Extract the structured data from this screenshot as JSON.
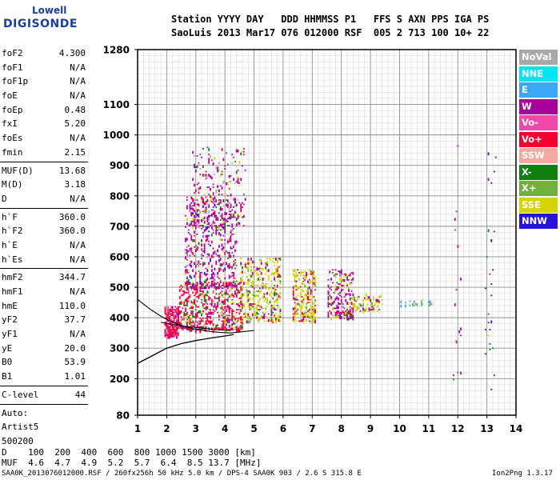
{
  "logo": {
    "top": "Lowell",
    "bottom": "DIGISONDE"
  },
  "header": {
    "line1": "Station YYYY DAY   DDD HHMMSS P1   FFS S AXN PPS IGA PS",
    "line2": "SaoLuis 2013 Mar17 076 012000 RSF  005 2 713 100 10+ 22"
  },
  "params": {
    "group1": [
      {
        "k": "foF2",
        "v": "4.300"
      },
      {
        "k": "foF1",
        "v": "N/A"
      },
      {
        "k": "foF1p",
        "v": "N/A"
      },
      {
        "k": "foE",
        "v": "N/A"
      },
      {
        "k": "foEp",
        "v": "0.48"
      },
      {
        "k": "fxI",
        "v": "5.20"
      },
      {
        "k": "foEs",
        "v": "N/A"
      },
      {
        "k": "fmin",
        "v": "2.15"
      }
    ],
    "group2": [
      {
        "k": "MUF(D)",
        "v": "13.68"
      },
      {
        "k": "M(D)",
        "v": "3.18"
      },
      {
        "k": "D",
        "v": "N/A"
      }
    ],
    "group3": [
      {
        "k": "h`F",
        "v": "360.0"
      },
      {
        "k": "h`F2",
        "v": "360.0"
      },
      {
        "k": "h`E",
        "v": "N/A"
      },
      {
        "k": "h`Es",
        "v": "N/A"
      }
    ],
    "group4": [
      {
        "k": "hmF2",
        "v": "344.7"
      },
      {
        "k": "hmF1",
        "v": "N/A"
      },
      {
        "k": "hmE",
        "v": "110.0"
      },
      {
        "k": "yF2",
        "v": "37.7"
      },
      {
        "k": "yF1",
        "v": "N/A"
      },
      {
        "k": "yE",
        "v": "20.0"
      },
      {
        "k": "B0",
        "v": "53.9"
      },
      {
        "k": "B1",
        "v": "1.01"
      }
    ],
    "clevel": {
      "k": "C-level",
      "v": "44"
    },
    "auto": [
      "Auto:",
      "Artist5",
      "500200"
    ]
  },
  "legend": [
    {
      "label": "NoVal",
      "color": "#a8a8a8"
    },
    {
      "label": "NNE",
      "color": "#00e4f4"
    },
    {
      "label": "E",
      "color": "#3aa8f4"
    },
    {
      "label": "W",
      "color": "#a8009c"
    },
    {
      "label": "Vo-",
      "color": "#f048a8"
    },
    {
      "label": "Vo+",
      "color": "#f40030"
    },
    {
      "label": "SSW",
      "color": "#f4a8a0"
    },
    {
      "label": "X-",
      "color": "#108010"
    },
    {
      "label": "X+",
      "color": "#70b040"
    },
    {
      "label": "SSE",
      "color": "#d4d400"
    },
    {
      "label": "NNW",
      "color": "#2814d8"
    }
  ],
  "chart_data": {
    "type": "scatter",
    "xlabel": "",
    "ylabel": "",
    "xlim": [
      1,
      14
    ],
    "ylim": [
      80,
      1280
    ],
    "x_ticks": [
      1,
      2,
      3,
      4,
      5,
      6,
      7,
      8,
      9,
      10,
      11,
      12,
      13,
      14
    ],
    "y_ticks": [
      80,
      200,
      300,
      400,
      500,
      600,
      700,
      800,
      900,
      1000,
      1100,
      1280
    ],
    "clusters": [
      {
        "x": [
          1.9,
          2.4
        ],
        "y": [
          340,
          440
        ],
        "main": "#f40030",
        "mix": [
          "#a8009c",
          "#f048a8"
        ],
        "n": 260
      },
      {
        "x": [
          2.4,
          4.6
        ],
        "y": [
          360,
          520
        ],
        "main": "#f40030",
        "mix": [
          "#a8009c",
          "#f048a8",
          "#d4d400",
          "#108010"
        ],
        "n": 650
      },
      {
        "x": [
          2.6,
          4.4
        ],
        "y": [
          500,
          800
        ],
        "main": "#a8009c",
        "mix": [
          "#f40030",
          "#f048a8",
          "#d4d400",
          "#108010",
          "#2814d8"
        ],
        "n": 520
      },
      {
        "x": [
          2.8,
          4.7
        ],
        "y": [
          700,
          960
        ],
        "main": "#a8009c",
        "mix": [
          "#f40030",
          "#d4d400",
          "#108010",
          "#a8a8a8"
        ],
        "n": 260
      },
      {
        "x": [
          4.5,
          5.9
        ],
        "y": [
          390,
          600
        ],
        "main": "#d4d400",
        "mix": [
          "#a8009c",
          "#f40030",
          "#108010",
          "#70b040"
        ],
        "n": 380
      },
      {
        "x": [
          6.3,
          7.1
        ],
        "y": [
          390,
          560
        ],
        "main": "#d4d400",
        "mix": [
          "#a8009c",
          "#f40030",
          "#70b040"
        ],
        "n": 260
      },
      {
        "x": [
          7.5,
          8.4
        ],
        "y": [
          400,
          560
        ],
        "main": "#a8009c",
        "mix": [
          "#d4d400",
          "#f40030",
          "#108010"
        ],
        "n": 220
      },
      {
        "x": [
          8.3,
          9.4
        ],
        "y": [
          425,
          480
        ],
        "main": "#d4d400",
        "mix": [
          "#70b040",
          "#a8009c"
        ],
        "n": 90
      },
      {
        "x": [
          9.9,
          11.1
        ],
        "y": [
          440,
          460
        ],
        "main": "#3aa8f4",
        "mix": [
          "#d4d400",
          "#70b040"
        ],
        "n": 22
      },
      {
        "x": [
          11.8,
          12.1
        ],
        "y": [
          200,
          1100
        ],
        "main": "#a8009c",
        "mix": [
          "#f40030",
          "#108010"
        ],
        "n": 18
      },
      {
        "x": [
          12.9,
          13.3
        ],
        "y": [
          150,
          980
        ],
        "main": "#2814d8",
        "mix": [
          "#a8009c",
          "#108010",
          "#d4d400"
        ],
        "n": 26
      }
    ],
    "profile_curve": {
      "x": [
        1.0,
        1.5,
        2.0,
        2.5,
        3.0,
        3.5,
        4.0,
        4.3
      ],
      "y": [
        250,
        275,
        300,
        315,
        325,
        333,
        340,
        345
      ]
    },
    "trace_curve": {
      "x": [
        1.0,
        1.4,
        1.8,
        2.2,
        2.6,
        3.0,
        3.4,
        3.8,
        4.2,
        4.6,
        5.0
      ],
      "y": [
        460,
        430,
        405,
        385,
        372,
        362,
        356,
        352,
        350,
        354,
        358
      ]
    },
    "trace_curve2": {
      "x": [
        1.8,
        2.2,
        2.6,
        3.0,
        3.4,
        3.8,
        4.2
      ],
      "y": [
        385,
        378,
        372,
        368,
        364,
        360,
        358
      ]
    }
  },
  "bottom": {
    "line_d": "D    100  200  400  600  800 1000 1500 3000 [km]",
    "line_muf": "MUF  4.6  4.7  4.9  5.2  5.7  6.4  8.5 13.7 [MHz]"
  },
  "footer": {
    "left": "SAA0K_2013076012000.RSF / 260fx256h 50 kHz 5.0 km / DPS-4 SAA0K 903 / 2.6 S 315.8 E",
    "right": "Ion2Png 1.3.17"
  }
}
